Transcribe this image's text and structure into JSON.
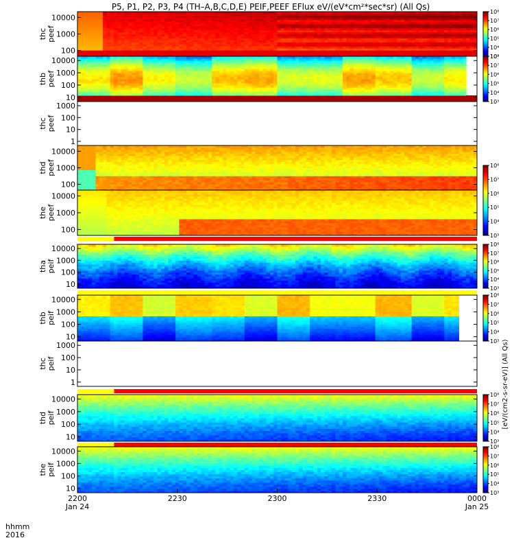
{
  "title": "P5, P1, P2, P3, P4 (TH–A,B,C,D,E) PEIF,PEEF EFlux eV/(eV*cm²*sec*sr) (All Qs)",
  "time_axis": {
    "row_label": "hhmm",
    "year": "2016",
    "ticks": [
      {
        "label": "2200",
        "date": "Jan 24",
        "minutes": 0
      },
      {
        "label": "2230",
        "date": "",
        "minutes": 30
      },
      {
        "label": "2300",
        "date": "",
        "minutes": 60
      },
      {
        "label": "2330",
        "date": "",
        "minutes": 90
      },
      {
        "label": "0000",
        "date": "Jan 25",
        "minutes": 120
      }
    ]
  },
  "colorbar": {
    "ticks": [
      "10³",
      "10⁴",
      "10⁵",
      "10⁶",
      "10⁷",
      "10⁸"
    ],
    "unit_label": "[eV/(cm2-s-sr-eV)] (All Qs)"
  },
  "chart_data": [
    {
      "type": "heatmap",
      "ylabel": "thc peef",
      "yticks": [
        "100",
        "1000",
        "10000"
      ],
      "has_data": true,
      "profile": "hot",
      "flags": null
    },
    {
      "type": "heatmap",
      "ylabel": "thb peef",
      "yticks": [
        "10",
        "100",
        "1000",
        "10000"
      ],
      "has_data": true,
      "profile": "mid",
      "flags": null
    },
    {
      "type": "heatmap",
      "ylabel": "thc peef",
      "yticks": [
        "1",
        "10",
        "100",
        "1000"
      ],
      "has_data": false,
      "profile": "none",
      "flags": null
    },
    {
      "type": "heatmap",
      "ylabel": "thd peef",
      "yticks": [
        "100",
        "1000",
        "10000"
      ],
      "has_data": true,
      "profile": "mixed",
      "flags": null
    },
    {
      "type": "heatmap",
      "ylabel": "the peef",
      "yticks": [
        "100",
        "1000",
        "10000"
      ],
      "has_data": true,
      "profile": "mixed2",
      "flags": {
        "switch_minutes": 11
      }
    },
    {
      "type": "heatmap",
      "ylabel": "tha peif",
      "yticks": [
        "10",
        "100",
        "1000",
        "10000"
      ],
      "has_data": true,
      "profile": "cool",
      "flags": {
        "switch_minutes": 120
      }
    },
    {
      "type": "heatmap",
      "ylabel": "thb peif",
      "yticks": [
        "10",
        "100",
        "1000",
        "10000"
      ],
      "has_data": true,
      "profile": "blocky",
      "flags": null
    },
    {
      "type": "heatmap",
      "ylabel": "thc peif",
      "yticks": [
        "1",
        "10",
        "100",
        "1000"
      ],
      "has_data": false,
      "profile": "none",
      "flags": {
        "switch_minutes": 11
      }
    },
    {
      "type": "heatmap",
      "ylabel": "thd peif",
      "yticks": [
        "10",
        "100",
        "1000",
        "10000"
      ],
      "has_data": true,
      "profile": "cool2",
      "flags": {
        "switch_minutes": 11
      }
    },
    {
      "type": "heatmap",
      "ylabel": "the peif",
      "yticks": [
        "10",
        "100",
        "1000",
        "10000"
      ],
      "has_data": true,
      "profile": "cool2",
      "flags": null
    }
  ]
}
